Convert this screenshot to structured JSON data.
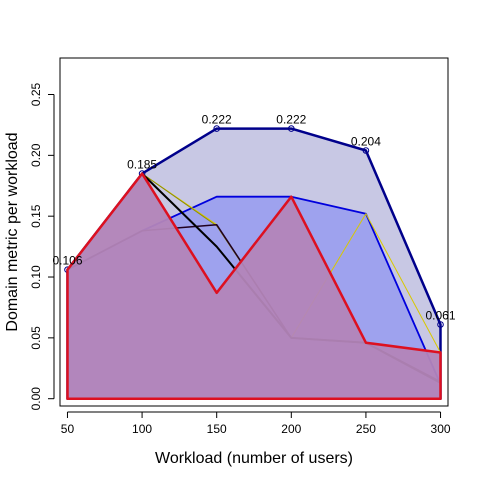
{
  "chart_data": {
    "type": "area",
    "title": "",
    "xlabel": "Workload (number of users)",
    "ylabel": "Domain metric per workload",
    "x": [
      50,
      100,
      150,
      200,
      250,
      300
    ],
    "x_ticks": [
      "50",
      "100",
      "150",
      "200",
      "250",
      "300"
    ],
    "y_ticks": [
      "0.00",
      "0.05",
      "0.10",
      "0.15",
      "0.20",
      "0.25"
    ],
    "y_tick_values": [
      0,
      0.05,
      0.1,
      0.15,
      0.2,
      0.25
    ],
    "xlim": [
      45,
      305
    ],
    "ylim": [
      -0.006,
      0.28
    ],
    "grid": false,
    "legend": "none",
    "series": [
      {
        "values": [
          0.106,
          0.185,
          0.222,
          0.222,
          0.204,
          0.061
        ],
        "fill": "#c8c8e4",
        "stroke": "#00008b",
        "stroke_width": 2.5,
        "show_points": true
      },
      {
        "values": [
          0.106,
          0.138,
          0.166,
          0.166,
          0.152,
          0.012
        ],
        "fill": "#9ea2ee",
        "stroke": "#0000dd",
        "stroke_width": 1.8
      },
      {
        "values": [
          0.106,
          0.185,
          0.143,
          0.05,
          0.152,
          0.038
        ],
        "fill": "none",
        "stroke": "#d8c800",
        "stroke_width": 1
      },
      {
        "values": [
          0.106,
          0.185,
          0.142,
          0.05,
          0.046,
          0.014
        ],
        "fill": "none",
        "stroke": "#8b8b00",
        "stroke_width": 1
      },
      {
        "values": [
          0.106,
          0.138,
          0.143,
          0.05,
          0.046,
          0.014
        ],
        "fill": "none",
        "stroke": "#200020",
        "stroke_width": 1.5
      },
      {
        "values": [
          0.106,
          0.185,
          0.125,
          0.05,
          0.046,
          0.013
        ],
        "fill": "none",
        "stroke": "#000000",
        "stroke_width": 2
      },
      {
        "values": [
          0.106,
          0.185,
          0.087,
          0.166,
          0.046,
          0.038
        ],
        "fill": "#b385b8",
        "fill_opacity": 0.95,
        "stroke": "#dd1020",
        "stroke_width": 2.5
      }
    ],
    "annotations": [
      {
        "x": 50,
        "y": 0.106,
        "label": "0.106"
      },
      {
        "x": 100,
        "y": 0.185,
        "label": "0.185"
      },
      {
        "x": 150,
        "y": 0.222,
        "label": "0.222"
      },
      {
        "x": 200,
        "y": 0.222,
        "label": "0.222"
      },
      {
        "x": 250,
        "y": 0.204,
        "label": "0.204"
      },
      {
        "x": 300,
        "y": 0.061,
        "label": "0.061"
      }
    ]
  }
}
